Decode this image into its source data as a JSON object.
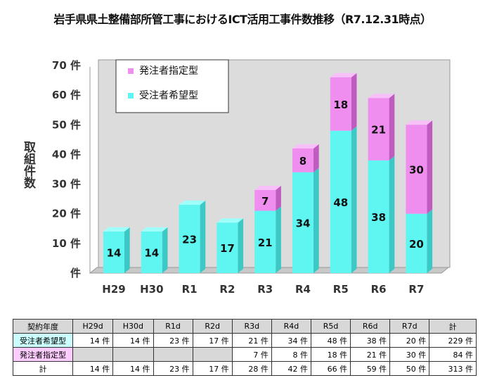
{
  "chart_data": {
    "type": "bar",
    "stacked": true,
    "title": "岩手県県土整備部所管工事におけるICT活用工事件数推移（R7.12.31時点）",
    "ylabel": "取組件数",
    "ylim": [
      0,
      70
    ],
    "yticks": [
      "件",
      "10 件",
      "20 件",
      "30 件",
      "40 件",
      "50 件",
      "60 件",
      "70 件"
    ],
    "categories": [
      "H29",
      "H30",
      "R1",
      "R2",
      "R3",
      "R4",
      "R5",
      "R6",
      "R7"
    ],
    "series": [
      {
        "name": "受注者希望型",
        "values": [
          14,
          14,
          23,
          17,
          21,
          34,
          48,
          38,
          20
        ],
        "color": "#5ff5f0"
      },
      {
        "name": "発注者指定型",
        "values": [
          null,
          null,
          null,
          null,
          7,
          8,
          18,
          21,
          30
        ],
        "color": "#f08ef0"
      }
    ],
    "legend": "top-left",
    "grid": false
  },
  "table": {
    "header": [
      "契約年度",
      "H29d",
      "H30d",
      "R1d",
      "R2d",
      "R3d",
      "R4d",
      "R5d",
      "R6d",
      "R7d",
      "計"
    ],
    "rows": [
      {
        "label": "受注者希望型",
        "color": "#ccffff",
        "cells": [
          "14 件",
          "14 件",
          "23 件",
          "17 件",
          "21 件",
          "34 件",
          "48 件",
          "38 件",
          "20 件",
          "229 件"
        ]
      },
      {
        "label": "発注者指定型",
        "color": "#ffccff",
        "cells": [
          "",
          "",
          "",
          "",
          "7 件",
          "8 件",
          "18 件",
          "21 件",
          "30 件",
          "84 件"
        ]
      },
      {
        "label": "計",
        "color": "#ffffff",
        "cells": [
          "14 件",
          "14 件",
          "23 件",
          "17 件",
          "28 件",
          "42 件",
          "66 件",
          "59 件",
          "50 件",
          "313 件"
        ]
      }
    ]
  }
}
